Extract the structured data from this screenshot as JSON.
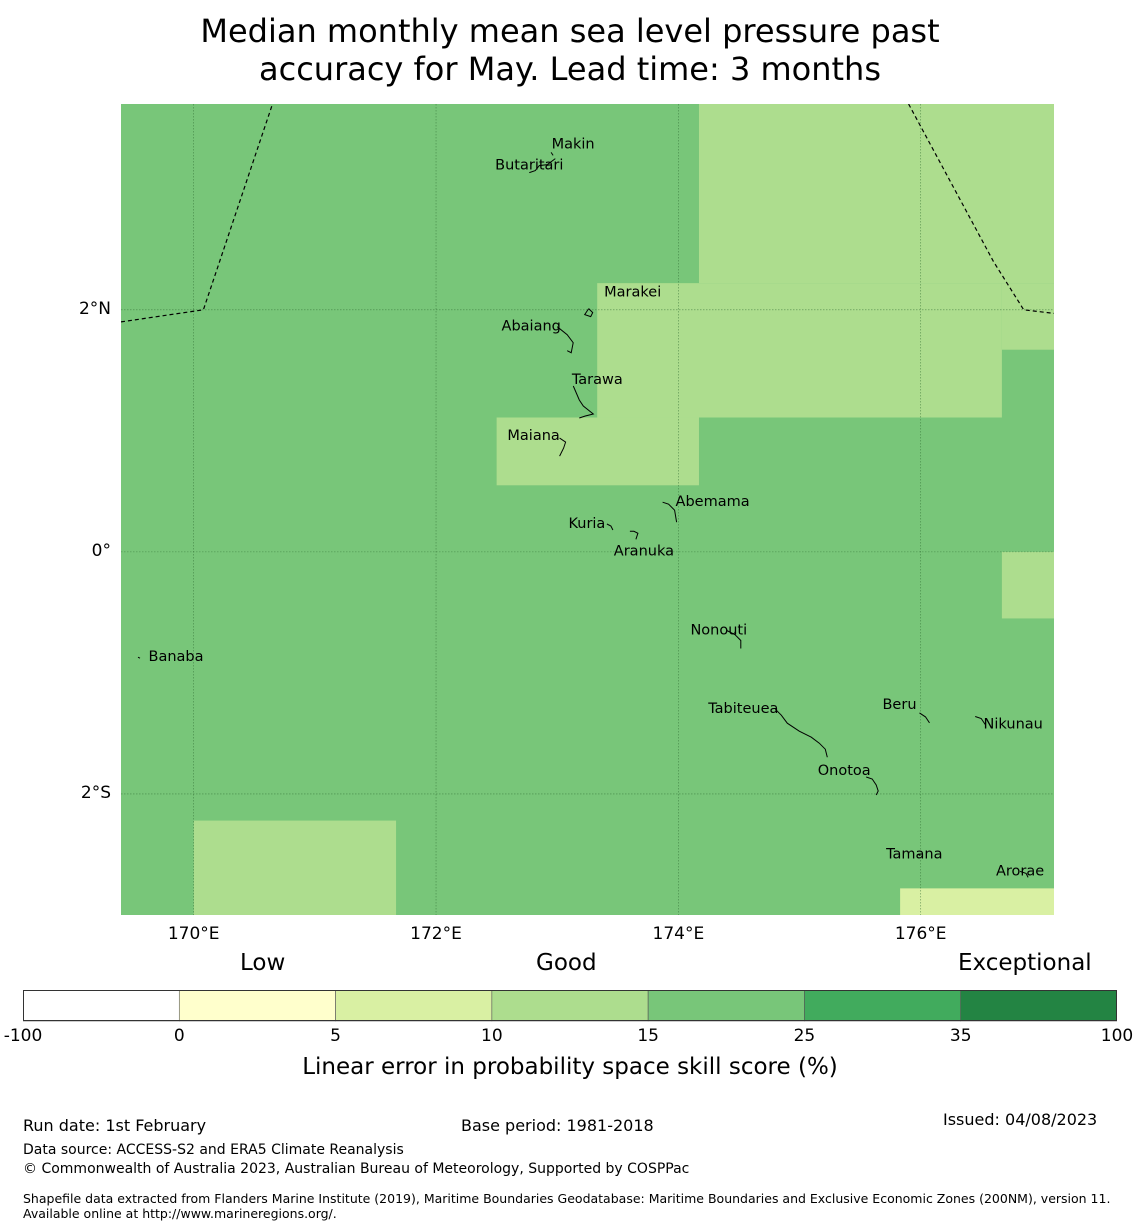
{
  "title": {
    "line1": "Median monthly mean sea level pressure past",
    "line2": "accuracy for May. Lead time: 3 months"
  },
  "map": {
    "lat_range": [
      -3.0,
      3.7
    ],
    "lon_range": [
      169.4,
      177.1
    ],
    "lon_ticks": [
      {
        "value": 170,
        "label": "170°E"
      },
      {
        "value": 172,
        "label": "172°E"
      },
      {
        "value": 174,
        "label": "174°E"
      },
      {
        "value": 176,
        "label": "176°E"
      }
    ],
    "lat_ticks": [
      {
        "value": 2,
        "label": "2°N"
      },
      {
        "value": 0,
        "label": "0°"
      },
      {
        "value": -2,
        "label": "2°S"
      }
    ],
    "colors": {
      "base": "#78c679",
      "light": "#addd8e",
      "pale": "#d9f0a3"
    },
    "skill_cells": [
      {
        "lon": [
          174.17,
          177.1
        ],
        "lat": [
          2.22,
          3.7
        ],
        "category": "10-15"
      },
      {
        "lon": [
          173.33,
          176.67
        ],
        "lat": [
          1.11,
          2.22
        ],
        "category": "10-15"
      },
      {
        "lon": [
          176.67,
          177.1
        ],
        "lat": [
          1.67,
          2.22
        ],
        "category": "10-15"
      },
      {
        "lon": [
          172.5,
          174.17
        ],
        "lat": [
          0.55,
          1.11
        ],
        "category": "10-15"
      },
      {
        "lon": [
          176.67,
          177.1
        ],
        "lat": [
          -0.55,
          0.0
        ],
        "category": "10-15"
      },
      {
        "lon": [
          170.0,
          171.67
        ],
        "lat": [
          -3.0,
          -2.22
        ],
        "category": "10-15"
      },
      {
        "lon": [
          175.83,
          177.1
        ],
        "lat": [
          -3.0,
          -2.78
        ],
        "category": "5-10"
      }
    ],
    "islands": [
      {
        "name": "Makin",
        "lon": 172.95,
        "lat": 3.3
      },
      {
        "name": "Butaritari",
        "lon": 172.77,
        "lat": 3.15
      },
      {
        "name": "Marakei",
        "lon": 173.26,
        "lat": 2.01
      },
      {
        "name": "Abaiang",
        "lon": 173.0,
        "lat": 1.86
      },
      {
        "name": "Tarawa",
        "lon": 173.1,
        "lat": 1.37
      },
      {
        "name": "Maiana",
        "lon": 173.02,
        "lat": 0.94
      },
      {
        "name": "Abemama",
        "lon": 173.87,
        "lat": 0.41
      },
      {
        "name": "Kuria",
        "lon": 173.41,
        "lat": 0.23
      },
      {
        "name": "Aranuka",
        "lon": 173.6,
        "lat": 0.17
      },
      {
        "name": "Banaba",
        "lon": 169.54,
        "lat": -0.87
      },
      {
        "name": "Nonouti",
        "lon": 174.4,
        "lat": -0.65
      },
      {
        "name": "Tabiteuea",
        "lon": 174.8,
        "lat": -1.3
      },
      {
        "name": "Beru",
        "lon": 175.99,
        "lat": -1.33
      },
      {
        "name": "Nikunau",
        "lon": 176.45,
        "lat": -1.36
      },
      {
        "name": "Onotoa",
        "lon": 175.55,
        "lat": -1.86
      },
      {
        "name": "Tamana",
        "lon": 175.98,
        "lat": -2.5
      },
      {
        "name": "Arorae",
        "lon": 176.82,
        "lat": -2.64
      }
    ],
    "eez_boundary_west": [
      [
        169.4,
        1.9
      ],
      [
        170.08,
        2.0
      ],
      [
        170.65,
        3.7
      ]
    ],
    "eez_boundary_east": [
      [
        175.9,
        3.7
      ],
      [
        176.6,
        2.4
      ],
      [
        176.85,
        2.0
      ],
      [
        177.1,
        1.97
      ]
    ]
  },
  "colorbar": {
    "category_words": [
      "Low",
      "Good",
      "Exceptional"
    ],
    "boundaries": [
      "-100",
      "0",
      "5",
      "10",
      "15",
      "25",
      "35",
      "100"
    ],
    "colors": [
      "#ffffff",
      "#ffffcc",
      "#d9f0a3",
      "#addd8e",
      "#78c679",
      "#41ab5d",
      "#238443"
    ],
    "label": "Linear error in probability space skill score (%)"
  },
  "footer": {
    "run_date": "Run date: 1st February",
    "base_period": "Base period: 1981-2018",
    "issued": "Issued: 04/08/2023",
    "data_source": "Data source: ACCESS-S2 and ERA5 Climate Reanalysis",
    "copyright": "© Commonwealth of Australia 2023, Australian Bureau of Meteorology, Supported by COSPPac",
    "shapefile_note": "Shapefile data extracted from Flanders Marine Institute (2019), Maritime Boundaries Geodatabase: Maritime Boundaries and Exclusive Economic Zones (200NM), version 11. Available online at http://www.marineregions.org/."
  }
}
